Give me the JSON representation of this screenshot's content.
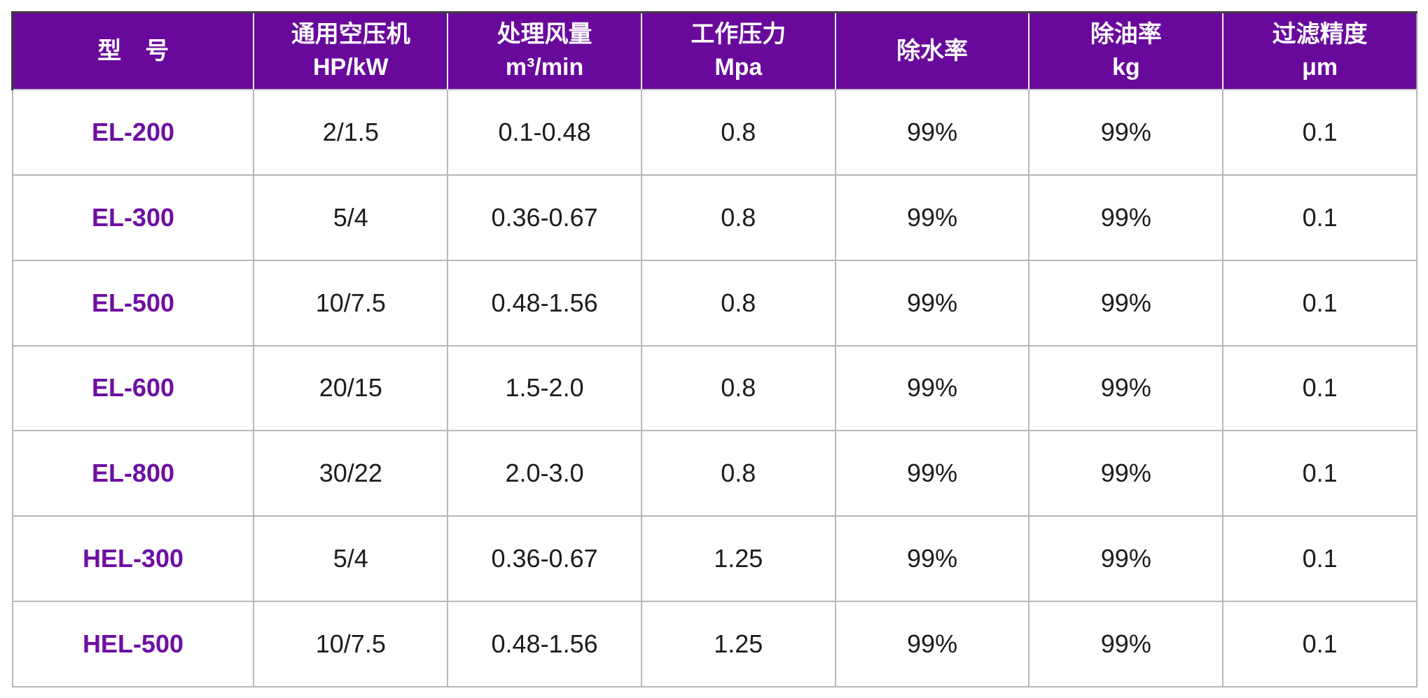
{
  "table": {
    "title": "air-filter-specification-table",
    "headers": [
      {
        "l1": "型　号",
        "l2": ""
      },
      {
        "l1": "通用空压机",
        "l2": "HP/kW"
      },
      {
        "l1": "处理风量",
        "l2": "m³/min"
      },
      {
        "l1": "工作压力",
        "l2": "Mpa"
      },
      {
        "l1": "除水率",
        "l2": ""
      },
      {
        "l1": "除油率",
        "l2": "kg"
      },
      {
        "l1": "过滤精度",
        "l2": "μm"
      }
    ],
    "rows": [
      [
        "EL-200",
        "2/1.5",
        "0.1-0.48",
        "0.8",
        "99%",
        "99%",
        "0.1"
      ],
      [
        "EL-300",
        "5/4",
        "0.36-0.67",
        "0.8",
        "99%",
        "99%",
        "0.1"
      ],
      [
        "EL-500",
        "10/7.5",
        "0.48-1.56",
        "0.8",
        "99%",
        "99%",
        "0.1"
      ],
      [
        "EL-600",
        "20/15",
        "1.5-2.0",
        "0.8",
        "99%",
        "99%",
        "0.1"
      ],
      [
        "EL-800",
        "30/22",
        "2.0-3.0",
        "0.8",
        "99%",
        "99%",
        "0.1"
      ],
      [
        "HEL-300",
        "5/4",
        "0.36-0.67",
        "1.25",
        "99%",
        "99%",
        "0.1"
      ],
      [
        "HEL-500",
        "10/7.5",
        "0.48-1.56",
        "1.25",
        "99%",
        "99%",
        "0.1"
      ]
    ]
  },
  "colors": {
    "header_background": "#69099c",
    "model_text": "#6d0fa2",
    "body_text": "#1c1c1c",
    "grid_line": "#b7b7b7"
  }
}
